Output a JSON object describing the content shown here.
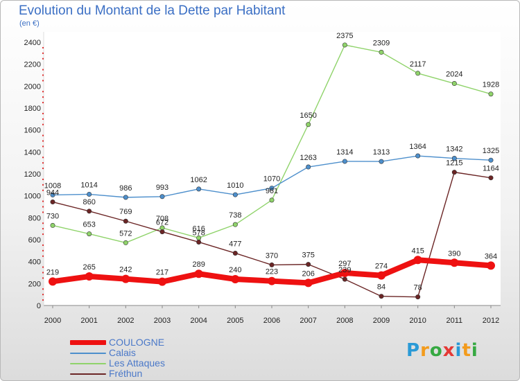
{
  "header": {
    "title": "Evolution du Montant de la Dette par Habitant",
    "subtitle": "(en €)"
  },
  "logo": {
    "text": "Proxiti",
    "colors": [
      "#2a9ad6",
      "#f39b1c",
      "#36a942",
      "#e53935",
      "#2a9ad6",
      "#f39b1c",
      "#36a942"
    ]
  },
  "chart_data": {
    "type": "line",
    "title": "Evolution du Montant de la Dette par Habitant",
    "subtitle": "(en €)",
    "x": [
      "2000",
      "2001",
      "2002",
      "2003",
      "2004",
      "2005",
      "2006",
      "2007",
      "2008",
      "2009",
      "2010",
      "2011",
      "2012"
    ],
    "ylim": [
      0,
      2400
    ],
    "yticks": [
      0,
      200,
      400,
      600,
      800,
      1000,
      1200,
      1400,
      1600,
      1800,
      2000,
      2200,
      2400
    ],
    "grid": false,
    "legend_position": "bottom-left",
    "series": [
      {
        "name": "COULOGNE",
        "color": "#ee1111",
        "values": [
          219,
          265,
          242,
          217,
          289,
          240,
          223,
          206,
          297,
          274,
          415,
          390,
          364
        ]
      },
      {
        "name": "Calais",
        "color": "#4d8fcc",
        "values": [
          1008,
          1014,
          986,
          993,
          1062,
          1010,
          1070,
          1263,
          1314,
          1313,
          1364,
          1342,
          1325
        ]
      },
      {
        "name": "Les Attaques",
        "color": "#8fd36a",
        "values": [
          730,
          653,
          572,
          708,
          616,
          738,
          961,
          1650,
          2375,
          2309,
          2117,
          2024,
          1928
        ]
      },
      {
        "name": "Fréthun",
        "color": "#6b2525",
        "values": [
          944,
          860,
          769,
          672,
          578,
          477,
          370,
          375,
          239,
          84,
          78,
          1215,
          1164
        ]
      }
    ]
  }
}
